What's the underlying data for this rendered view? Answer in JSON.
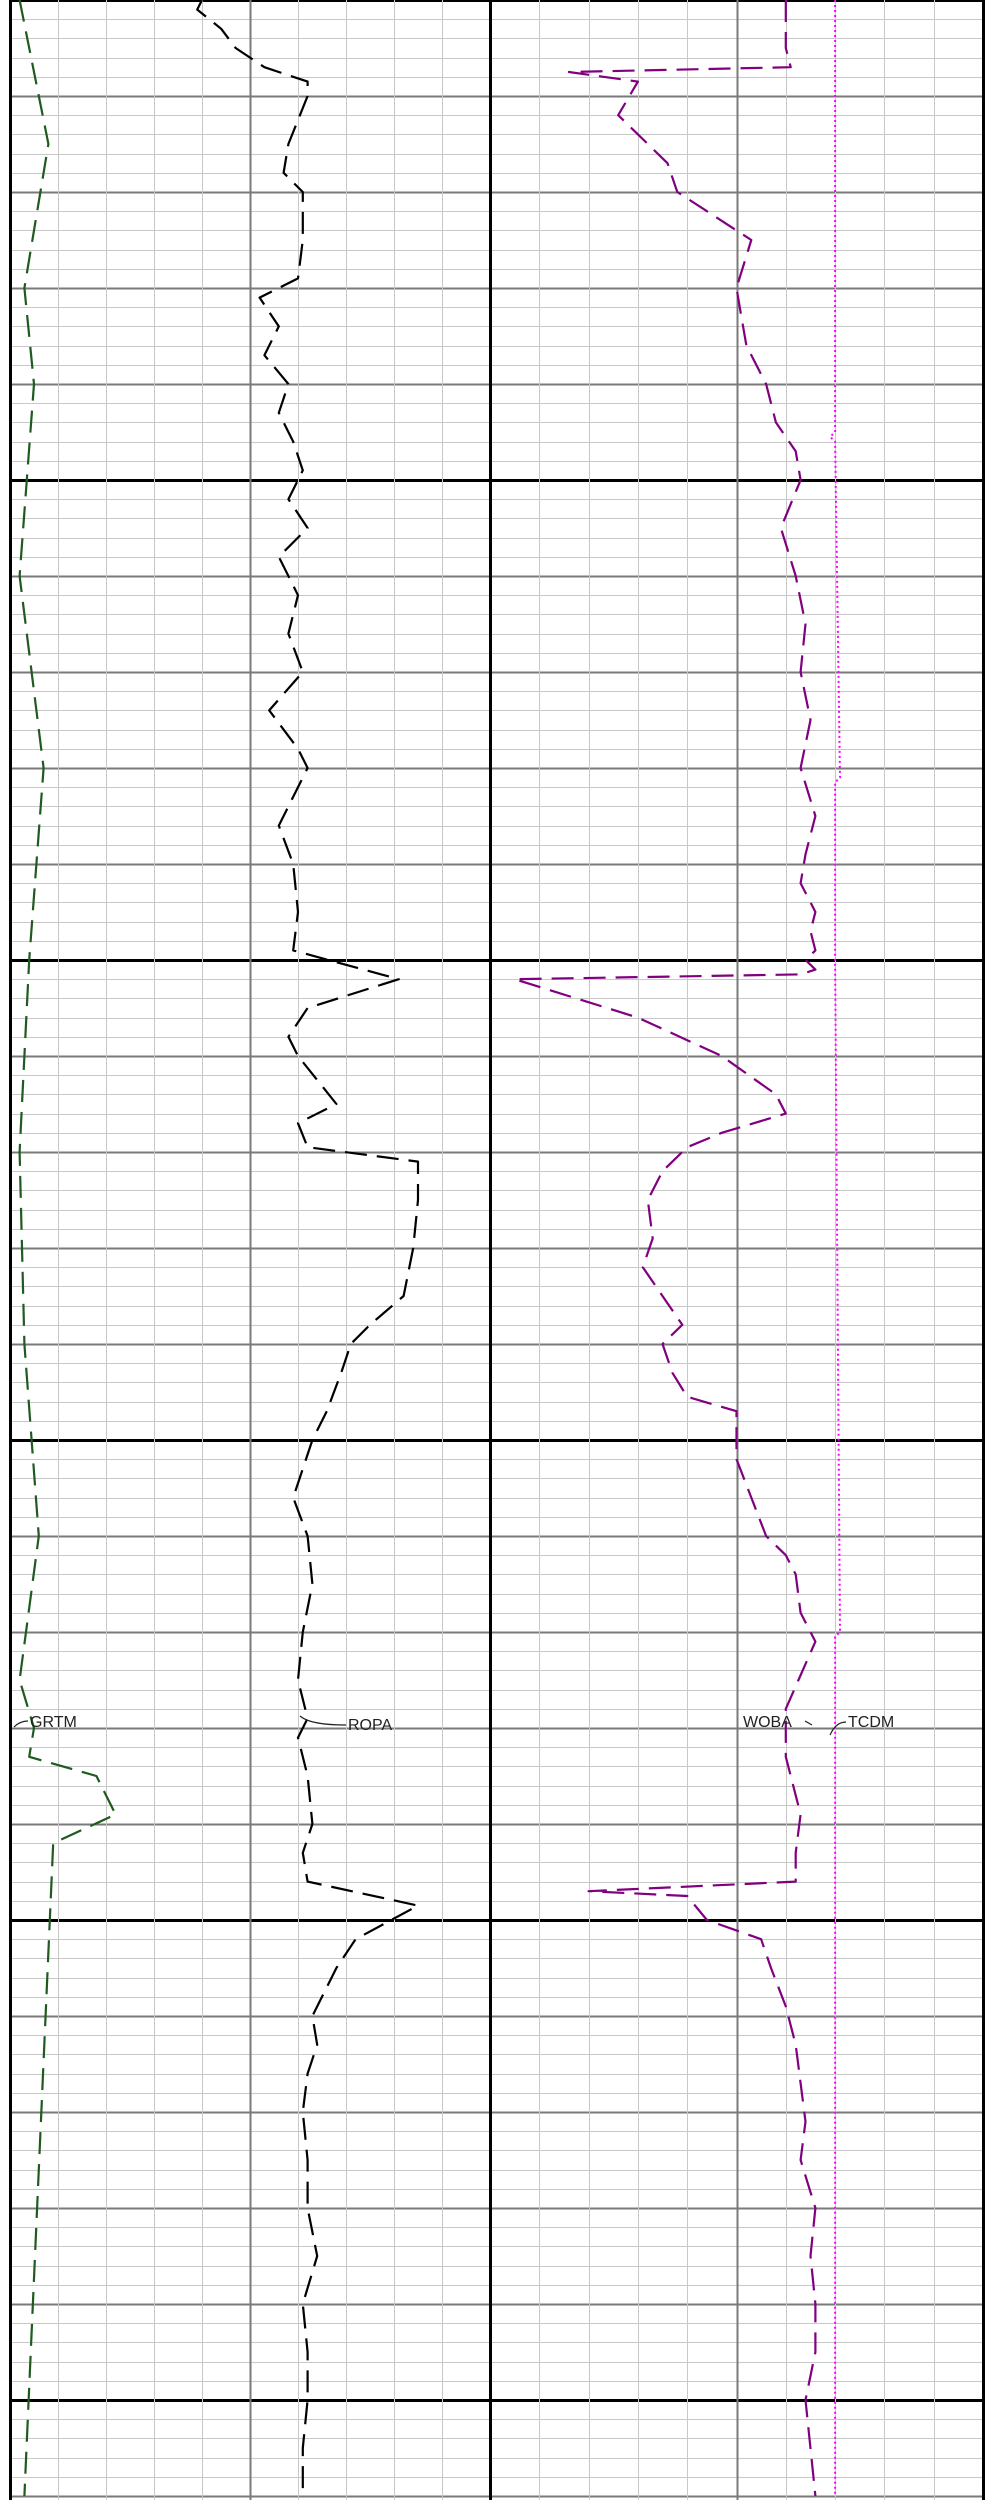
{
  "chart_data": {
    "type": "line",
    "title": "",
    "grid": true,
    "y_direction": "depth-down",
    "labels": [
      "GRTM",
      "ROPA",
      "WOBA",
      "TCDM"
    ],
    "colors": {
      "GRTM": "#1f5a1f",
      "ROPA": "#000000",
      "WOBA": "#800080",
      "TCDM": "#ff00ff",
      "grid_minor": "#c8c8c8",
      "grid_major": "#7a7a7a",
      "grid_heavy": "#000000"
    },
    "series": [
      {
        "name": "GRTM",
        "track": 1,
        "style": "dashed",
        "x": [
          0.2,
          0.8,
          0.3,
          0.5,
          0.2,
          0.7,
          0.4,
          0.2,
          0.3,
          0.6,
          0.2,
          0.5,
          0.4,
          1.8,
          2.2,
          0.9,
          0.3
        ],
        "y": [
          0,
          1.5,
          3,
          4,
          6,
          8,
          10,
          12,
          14,
          16,
          17.5,
          18,
          18.3,
          18.5,
          18.9,
          19.2,
          26
        ]
      },
      {
        "name": "ROPA",
        "track": 1,
        "style": "dashed",
        "x": [
          4.0,
          3.9,
          4.4,
          4.7,
          5.3,
          6.2,
          6.2,
          5.8,
          5.7,
          6.1,
          6.1,
          6.0,
          5.2,
          5.6,
          5.3,
          5.8,
          5.6,
          5.9,
          6.1,
          5.8,
          6.2,
          5.6,
          6.0,
          5.8,
          6.1,
          5.4,
          6.0,
          6.2,
          5.9,
          5.6,
          5.9,
          6.0,
          5.9,
          8.1,
          6.2,
          5.8,
          6.0,
          6.8,
          6.0,
          6.2,
          8.5,
          8.5,
          8.4,
          8.2,
          7.5,
          7.1,
          6.9,
          6.6,
          6.3,
          6.1,
          5.9,
          6.2,
          6.3,
          6.1,
          6.0,
          6.2,
          6.0,
          6.2,
          6.3,
          6.1,
          6.2,
          8.5,
          7.2,
          6.8,
          6.5,
          6.3,
          6.4,
          6.2,
          6.1,
          6.2,
          6.2,
          6.4,
          6.1,
          6.2,
          6.2,
          6.1,
          6.1
        ],
        "y": [
          0,
          0.1,
          0.3,
          0.5,
          0.7,
          0.85,
          1.0,
          1.5,
          1.8,
          2.0,
          2.5,
          2.9,
          3.1,
          3.4,
          3.7,
          4.0,
          4.3,
          4.6,
          4.9,
          5.2,
          5.5,
          5.8,
          6.2,
          6.6,
          7.0,
          7.4,
          7.8,
          8.0,
          8.3,
          8.6,
          9.0,
          9.5,
          9.9,
          10.2,
          10.5,
          10.8,
          11.0,
          11.5,
          11.7,
          11.95,
          12.1,
          12.5,
          13.0,
          13.5,
          13.8,
          14.0,
          14.3,
          14.7,
          15.0,
          15.3,
          15.6,
          16.0,
          16.5,
          17.0,
          17.5,
          17.9,
          18.1,
          18.5,
          19.0,
          19.3,
          19.6,
          19.85,
          20.2,
          20.5,
          20.8,
          21.0,
          21.3,
          21.6,
          22.0,
          22.5,
          23.0,
          23.5,
          24.0,
          24.5,
          25.0,
          25.5,
          26.0
        ]
      },
      {
        "name": "WOBA",
        "track": 2,
        "style": "dashed",
        "x": [
          6.0,
          6.0,
          6.1,
          1.6,
          3.0,
          2.6,
          3.2,
          3.6,
          3.8,
          5.3,
          5.0,
          5.1,
          5.2,
          5.6,
          5.8,
          6.2,
          6.3,
          5.9,
          6.2,
          6.4,
          6.3,
          6.5,
          6.3,
          6.6,
          6.4,
          6.3,
          6.6,
          6.5,
          6.6,
          6.4,
          6.6,
          6.3,
          0.5,
          3.0,
          4.7,
          5.8,
          6.0,
          4.7,
          4.0,
          3.5,
          3.2,
          3.3,
          3.1,
          3.5,
          3.9,
          3.5,
          3.7,
          4.0,
          5.0,
          5.0,
          5.3,
          5.6,
          6.0,
          6.2,
          6.3,
          6.6,
          6.0,
          6.0,
          6.3,
          6.2,
          6.2,
          2.0,
          4.0,
          4.4,
          5.5,
          5.7,
          6.0,
          6.2,
          6.3,
          6.4,
          6.3,
          6.6,
          6.5,
          6.6,
          6.6,
          6.4,
          6.6
        ],
        "y": [
          0,
          0.5,
          0.7,
          0.75,
          0.85,
          1.2,
          1.5,
          1.7,
          2.0,
          2.5,
          3.0,
          3.3,
          3.6,
          4.0,
          4.4,
          4.7,
          5.0,
          5.5,
          6.0,
          6.5,
          7.0,
          7.5,
          8.0,
          8.5,
          8.9,
          9.2,
          9.5,
          9.7,
          9.9,
          10.0,
          10.1,
          10.15,
          10.2,
          10.6,
          11.0,
          11.4,
          11.6,
          11.8,
          11.95,
          12.2,
          12.5,
          12.9,
          13.2,
          13.5,
          13.8,
          14.0,
          14.3,
          14.55,
          14.7,
          15.2,
          15.6,
          16.0,
          16.2,
          16.4,
          16.8,
          17.1,
          17.8,
          18.3,
          18.9,
          19.3,
          19.6,
          19.7,
          19.75,
          20.0,
          20.2,
          20.5,
          20.9,
          21.3,
          21.7,
          22.1,
          22.5,
          23.0,
          23.5,
          24.0,
          24.5,
          25.0,
          26.0
        ]
      },
      {
        "name": "TCDM",
        "track": 2,
        "style": "dotted",
        "x": [
          7.0,
          7.0,
          6.9,
          7.0,
          7.1,
          7.0,
          7.0,
          7.1,
          7.0,
          7.0,
          7.0
        ],
        "y": [
          0,
          4.5,
          4.55,
          4.6,
          8.1,
          8.15,
          10.0,
          17.0,
          17.05,
          17.1,
          26.0
        ]
      }
    ]
  }
}
